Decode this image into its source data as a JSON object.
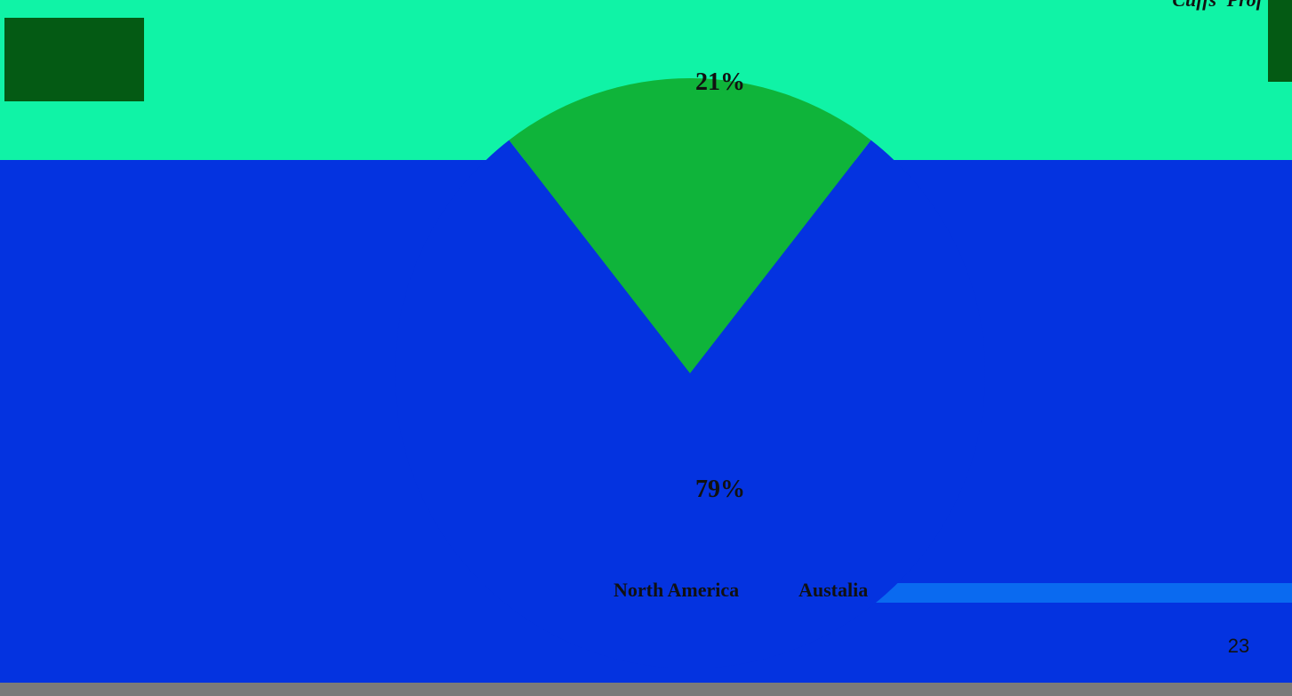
{
  "chart_data": {
    "type": "pie",
    "categories": [
      "North America",
      "Austalia"
    ],
    "values": [
      79,
      21
    ],
    "value_labels": [
      "79%",
      "21%"
    ],
    "colors": [
      "#0433e0",
      "#0fb43a"
    ],
    "header_text": "Cuffs' Prof",
    "page_number": "23"
  }
}
